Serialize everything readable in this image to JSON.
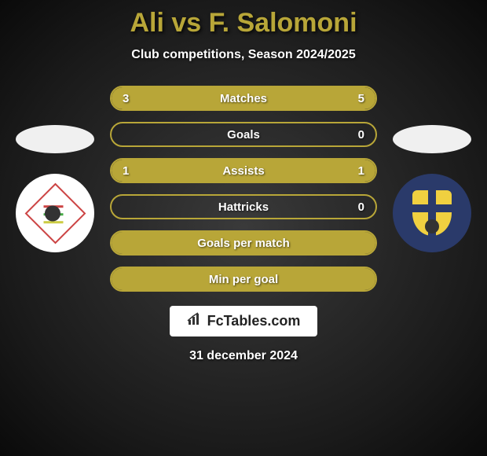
{
  "header": {
    "title": "Ali vs F. Salomoni",
    "subtitle": "Club competitions, Season 2024/2025"
  },
  "stats": [
    {
      "label": "Matches",
      "left_value": "3",
      "right_value": "5",
      "left_fill_pct": 37.5,
      "right_fill_pct": 62.5
    },
    {
      "label": "Goals",
      "left_value": "",
      "right_value": "0",
      "left_fill_pct": 0,
      "right_fill_pct": 0
    },
    {
      "label": "Assists",
      "left_value": "1",
      "right_value": "1",
      "left_fill_pct": 50,
      "right_fill_pct": 50
    },
    {
      "label": "Hattricks",
      "left_value": "",
      "right_value": "0",
      "left_fill_pct": 0,
      "right_fill_pct": 0
    },
    {
      "label": "Goals per match",
      "left_value": "",
      "right_value": "",
      "left_fill_pct": 100,
      "right_fill_pct": 0,
      "full": true
    },
    {
      "label": "Min per goal",
      "left_value": "",
      "right_value": "",
      "left_fill_pct": 100,
      "right_fill_pct": 0,
      "full": true
    }
  ],
  "branding": {
    "text": "FcTables.com"
  },
  "footer": {
    "date": "31 december 2024"
  },
  "colors": {
    "accent": "#b8a638",
    "bg_radial_inner": "#3a3a3a",
    "bg_radial_outer": "#0a0a0a"
  }
}
